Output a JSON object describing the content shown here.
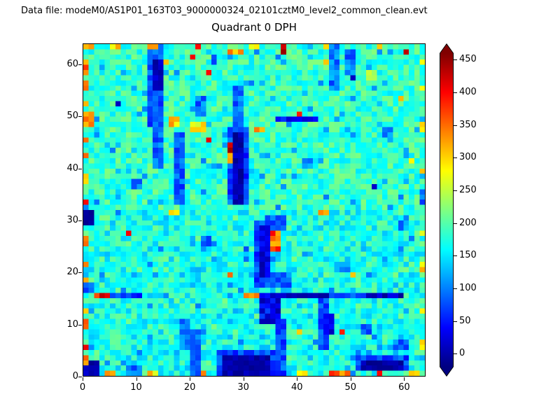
{
  "header": {
    "data_file_label": "Data file: modeM0/AS1P01_163T03_9000000324_02101cztM0_level2_common_clean.evt"
  },
  "chart_data": {
    "type": "heatmap",
    "title": "Quadrant 0 DPH",
    "xlabel": "",
    "ylabel": "",
    "x_range": [
      0,
      64
    ],
    "y_range": [
      0,
      64
    ],
    "x_ticks": [
      0,
      10,
      20,
      30,
      40,
      50,
      60
    ],
    "y_ticks": [
      0,
      10,
      20,
      30,
      40,
      50,
      60
    ],
    "grid_size": [
      64,
      64
    ],
    "colormap": "jet",
    "vmin": -20,
    "vmax": 460,
    "colorbar": {
      "ticks": [
        0,
        50,
        100,
        150,
        200,
        250,
        300,
        350,
        400,
        450
      ],
      "extend": "both"
    },
    "background_model": {
      "seed": 97,
      "base_min": 148,
      "base_max": 222,
      "lower_half_extra_blue": 28,
      "blue_dot_prob": 0.05,
      "blue_dot_min": 95,
      "blue_dot_max": 140,
      "hot_dot_prob": 0.004,
      "hot_dot_min": 280,
      "hot_dot_max": 420
    },
    "features": [
      [
        25,
        0,
        11,
        5,
        70,
        30
      ],
      [
        51,
        1,
        10,
        3,
        75,
        30
      ],
      [
        8,
        0,
        3,
        2,
        92,
        38
      ],
      [
        20,
        0,
        2,
        9,
        85,
        30
      ],
      [
        36,
        0,
        2,
        11,
        80,
        35
      ],
      [
        18,
        5,
        2,
        6,
        95,
        35
      ],
      [
        44,
        5,
        2,
        11,
        78,
        30
      ],
      [
        58,
        5,
        3,
        2,
        86,
        34
      ],
      [
        52,
        8,
        2,
        2,
        92,
        34
      ],
      [
        45,
        8,
        2,
        4,
        30,
        25
      ],
      [
        11,
        15,
        5,
        1,
        130,
        35
      ],
      [
        5,
        15,
        6,
        1,
        62,
        28
      ],
      [
        46,
        15,
        7,
        1,
        72,
        28
      ],
      [
        33,
        15,
        13,
        1,
        10,
        22
      ],
      [
        53,
        15,
        7,
        1,
        15,
        26
      ],
      [
        0,
        16,
        2,
        2,
        82,
        30
      ],
      [
        32,
        17,
        3,
        13,
        72,
        30
      ],
      [
        34,
        17,
        5,
        3,
        88,
        30
      ],
      [
        34,
        28,
        4,
        3,
        82,
        30
      ],
      [
        33,
        19,
        2,
        10,
        22,
        28
      ],
      [
        30,
        22,
        1,
        3,
        100,
        40
      ],
      [
        47,
        20,
        3,
        2,
        96,
        34
      ],
      [
        22,
        25,
        2,
        2,
        92,
        38
      ],
      [
        59,
        28,
        2,
        2,
        102,
        38
      ],
      [
        9,
        36,
        2,
        2,
        96,
        38
      ],
      [
        41,
        40,
        2,
        2,
        96,
        38
      ],
      [
        17,
        33,
        2,
        14,
        82,
        30
      ],
      [
        27,
        33,
        4,
        15,
        72,
        35
      ],
      [
        28,
        33,
        2,
        14,
        5,
        20
      ],
      [
        13,
        40,
        2,
        9,
        88,
        30
      ],
      [
        56,
        46,
        2,
        2,
        92,
        34
      ],
      [
        12,
        48,
        3,
        16,
        78,
        30
      ],
      [
        13,
        55,
        2,
        6,
        15,
        25
      ],
      [
        28,
        48,
        2,
        8,
        92,
        35
      ],
      [
        36,
        49,
        8,
        1,
        45,
        30
      ],
      [
        21,
        50,
        2,
        4,
        92,
        34
      ],
      [
        6,
        52,
        1,
        1,
        26,
        18
      ],
      [
        46,
        55,
        2,
        9,
        98,
        35
      ],
      [
        49,
        58,
        2,
        5,
        102,
        38
      ],
      [
        50,
        57,
        1,
        1,
        15,
        12
      ],
      [
        24,
        60,
        1,
        2,
        86,
        28
      ],
      [
        54,
        36,
        1,
        1,
        10,
        10
      ],
      [
        63,
        33,
        1,
        3,
        95,
        35
      ],
      [
        33,
        10,
        4,
        6,
        35,
        40
      ],
      [
        26,
        0,
        9,
        4,
        0,
        15
      ],
      [
        29,
        1,
        5,
        2,
        -8,
        8
      ],
      [
        52,
        1,
        8,
        2,
        0,
        18
      ],
      [
        0,
        0,
        3,
        3,
        5,
        20
      ],
      [
        0,
        29,
        2,
        3,
        -5,
        12
      ],
      [
        2,
        15,
        3,
        1,
        385,
        55
      ],
      [
        30,
        15,
        3,
        1,
        365,
        50
      ],
      [
        35,
        24,
        2,
        4,
        350,
        55
      ],
      [
        27,
        41,
        1,
        2,
        340,
        40
      ],
      [
        27,
        43,
        1,
        2,
        430,
        30
      ],
      [
        16,
        31,
        2,
        1,
        300,
        40
      ],
      [
        44,
        31,
        2,
        1,
        300,
        40
      ],
      [
        20,
        47,
        3,
        2,
        300,
        45
      ],
      [
        32,
        47,
        2,
        1,
        320,
        48
      ],
      [
        63,
        47,
        1,
        2,
        290,
        40
      ],
      [
        16,
        48,
        2,
        2,
        305,
        40
      ],
      [
        0,
        48,
        2,
        3,
        315,
        50
      ],
      [
        53,
        57,
        2,
        2,
        260,
        30
      ],
      [
        20,
        61,
        1,
        1,
        405,
        28
      ],
      [
        37,
        62,
        1,
        2,
        430,
        25
      ],
      [
        60,
        62,
        1,
        1,
        440,
        18
      ],
      [
        27,
        62,
        3,
        1,
        300,
        55
      ],
      [
        46,
        0,
        2,
        1,
        350,
        48
      ],
      [
        63,
        20,
        1,
        2,
        300,
        40
      ],
      [
        0,
        2,
        1,
        2,
        320,
        40
      ],
      [
        0,
        5,
        1,
        1,
        400,
        40
      ],
      [
        0,
        9,
        1,
        2,
        350,
        40
      ],
      [
        0,
        12,
        1,
        1,
        300,
        30
      ],
      [
        0,
        18,
        1,
        1,
        310,
        30
      ],
      [
        0,
        21,
        1,
        1,
        360,
        40
      ],
      [
        0,
        25,
        1,
        2,
        340,
        40
      ],
      [
        0,
        33,
        1,
        1,
        380,
        40
      ],
      [
        0,
        37,
        1,
        2,
        330,
        40
      ],
      [
        0,
        42,
        1,
        1,
        350,
        40
      ],
      [
        0,
        45,
        1,
        1,
        370,
        40
      ],
      [
        0,
        52,
        1,
        1,
        320,
        30
      ],
      [
        0,
        55,
        1,
        2,
        330,
        48
      ],
      [
        0,
        58,
        1,
        2,
        350,
        40
      ],
      [
        0,
        60,
        1,
        1,
        300,
        30
      ],
      [
        0,
        63,
        2,
        1,
        340,
        48
      ],
      [
        5,
        63,
        2,
        1,
        310,
        40
      ],
      [
        12,
        63,
        2,
        1,
        300,
        40
      ],
      [
        31,
        63,
        2,
        1,
        290,
        30
      ],
      [
        45,
        63,
        1,
        1,
        310,
        30
      ],
      [
        55,
        63,
        1,
        1,
        300,
        30
      ],
      [
        63,
        5,
        1,
        2,
        280,
        30
      ],
      [
        63,
        12,
        1,
        1,
        300,
        30
      ],
      [
        63,
        27,
        1,
        1,
        290,
        30
      ],
      [
        63,
        39,
        1,
        1,
        300,
        30
      ],
      [
        63,
        55,
        1,
        1,
        280,
        30
      ],
      [
        63,
        60,
        1,
        1,
        300,
        30
      ],
      [
        4,
        0,
        2,
        1,
        330,
        40
      ],
      [
        12,
        0,
        2,
        1,
        300,
        40
      ],
      [
        22,
        0,
        1,
        1,
        340,
        30
      ],
      [
        40,
        0,
        2,
        1,
        320,
        40
      ],
      [
        48,
        0,
        2,
        1,
        330,
        40
      ],
      [
        61,
        0,
        2,
        1,
        310,
        40
      ]
    ]
  },
  "colors": {
    "frame": "#000000",
    "text": "#000000",
    "figure_background": "#ffffff"
  }
}
